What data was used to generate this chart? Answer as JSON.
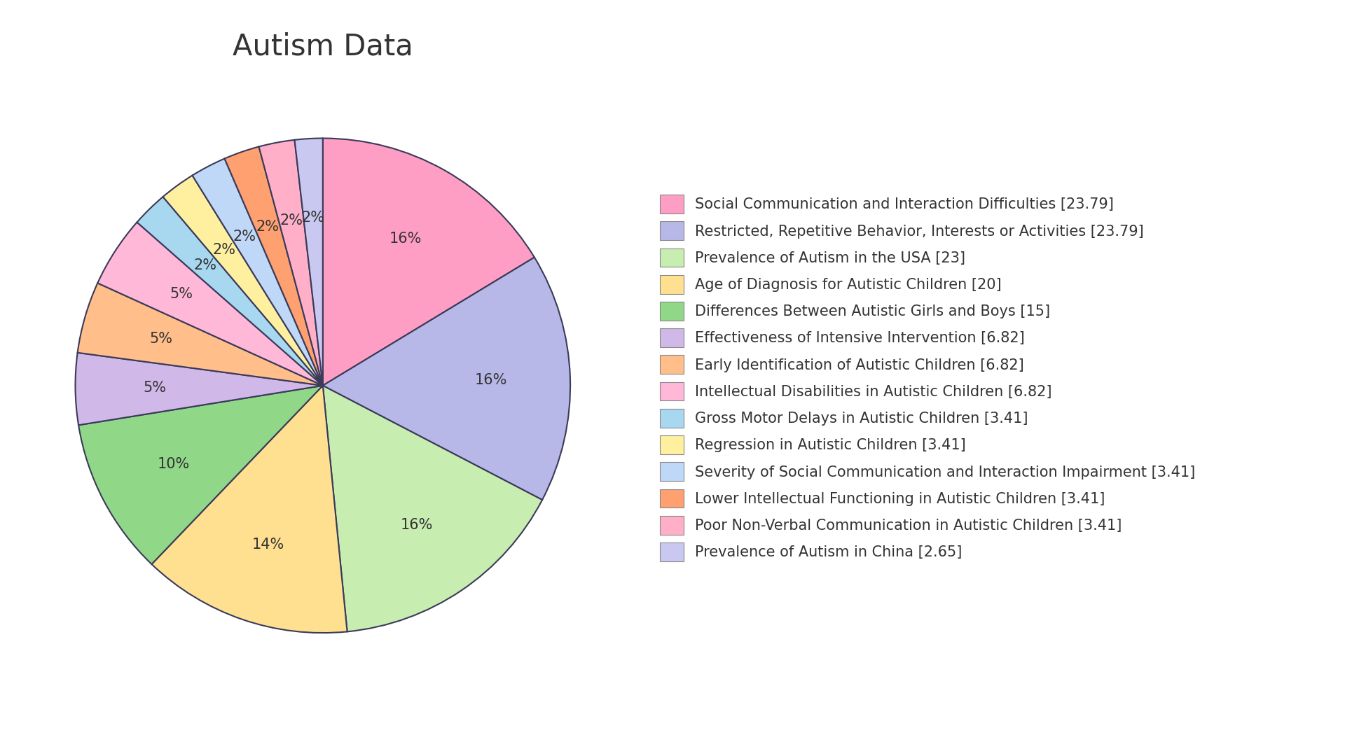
{
  "title": "Autism Data",
  "slices": [
    {
      "label": "Social Communication and Interaction Difficulties [23.79]",
      "value": 23.79,
      "color": "#FF9EC4"
    },
    {
      "label": "Restricted, Repetitive Behavior, Interests or Activities [23.79]",
      "value": 23.79,
      "color": "#B8B8E8"
    },
    {
      "label": "Prevalence of Autism in the USA [23]",
      "value": 23.0,
      "color": "#C8EDB0"
    },
    {
      "label": "Age of Diagnosis for Autistic Children [20]",
      "value": 20.0,
      "color": "#FFE090"
    },
    {
      "label": "Differences Between Autistic Girls and Boys [15]",
      "value": 15.0,
      "color": "#90D888"
    },
    {
      "label": "Effectiveness of Intensive Intervention [6.82]",
      "value": 6.82,
      "color": "#D0B8E8"
    },
    {
      "label": "Early Identification of Autistic Children [6.82]",
      "value": 6.82,
      "color": "#FFBE8A"
    },
    {
      "label": "Intellectual Disabilities in Autistic Children [6.82]",
      "value": 6.82,
      "color": "#FFB8D8"
    },
    {
      "label": "Gross Motor Delays in Autistic Children [3.41]",
      "value": 3.41,
      "color": "#A8D8F0"
    },
    {
      "label": "Regression in Autistic Children [3.41]",
      "value": 3.41,
      "color": "#FFF0A0"
    },
    {
      "label": "Severity of Social Communication and Interaction Impairment [3.41]",
      "value": 3.41,
      "color": "#C0D8F8"
    },
    {
      "label": "Lower Intellectual Functioning in Autistic Children [3.41]",
      "value": 3.41,
      "color": "#FFA070"
    },
    {
      "label": "Poor Non-Verbal Communication in Autistic Children [3.41]",
      "value": 3.41,
      "color": "#FFB0C8"
    },
    {
      "label": "Prevalence of Autism in China [2.65]",
      "value": 2.65,
      "color": "#C8C8F0"
    }
  ],
  "background_color": "#FFFFFF",
  "title_fontsize": 30,
  "pct_fontsize": 15,
  "legend_fontsize": 15,
  "text_color": "#333333",
  "edge_color": "#3A3A5A"
}
